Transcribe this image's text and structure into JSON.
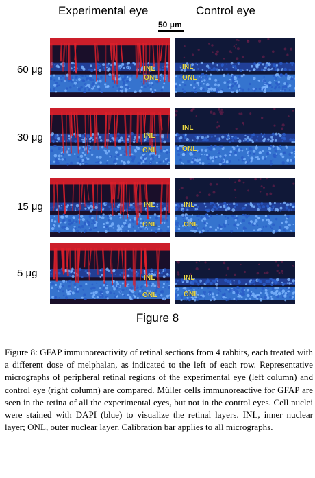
{
  "columns": {
    "experimental": "Experimental eye",
    "control": "Control eye"
  },
  "scale_bar": {
    "label": "50 μm"
  },
  "rows": [
    {
      "dose": "60 μg",
      "exp_labels": [
        "INL",
        "ONL"
      ],
      "ctl_labels": [
        "INL",
        "ONL"
      ]
    },
    {
      "dose": "30 μg",
      "exp_labels": [
        "INL",
        "ONL"
      ],
      "ctl_labels": [
        "INL",
        "ONL"
      ]
    },
    {
      "dose": "15 μg",
      "exp_labels": [
        "INL",
        "ONL"
      ],
      "ctl_labels": [
        "INL",
        "ONL"
      ]
    },
    {
      "dose": "5 μg",
      "exp_labels": [
        "INL",
        "ONL"
      ],
      "ctl_labels": [
        "INL",
        "ONL"
      ]
    }
  ],
  "figure_title": "Figure 8",
  "caption": {
    "label": "Figure 8:",
    "text": "GFAP immunoreactivity of retinal sections from 4 rabbits, each treated with a different dose of melphalan, as indicated to the left of each row. Representative micrographs of peripheral retinal regions of the experimental eye (left column) and control eye (right column) are compared. Müller cells immunoreactive for GFAP are seen in the retina of all the experimental eyes, but not in the control eyes. Cell nuclei were stained with DAPI (blue) to visualize the retinal layers. INL, inner nuclear layer; ONL, outer nuclear layer. Calibration bar applies to all micrographs."
  },
  "colors": {
    "gfap_red": "#e0202a",
    "dapi_blue": "#3a7ee0",
    "background_dark": "#141430",
    "layer_label": "#e8d84a"
  }
}
